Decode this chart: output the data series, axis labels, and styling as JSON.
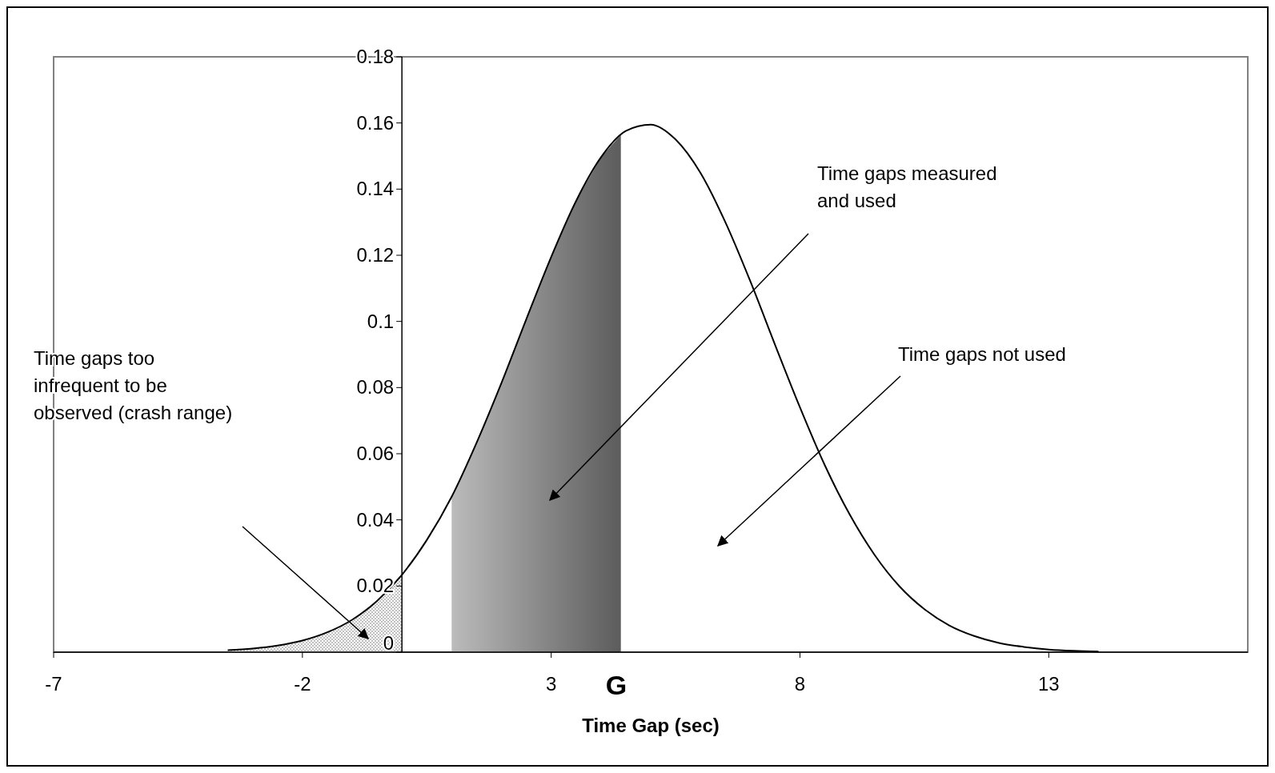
{
  "chart_data": {
    "type": "line",
    "xlabel": "Time Gap (sec)",
    "xlim": [
      -7,
      17
    ],
    "xticks": [
      -7,
      -2,
      3,
      8,
      13
    ],
    "ylim": [
      0,
      0.18
    ],
    "yticks": [
      0,
      0.02,
      0.04,
      0.06,
      0.08,
      0.1,
      0.12,
      0.14,
      0.16,
      0.18
    ],
    "grid": false,
    "series": [
      {
        "type": "area",
        "color": "#c0c0c0",
        "x": [
          -3.5,
          -3,
          -2.5,
          -2,
          -1.5,
          -1,
          -0.5,
          0
        ],
        "values": [
          0.0006,
          0.0011,
          0.002,
          0.0035,
          0.006,
          0.0098,
          0.0155,
          0.0234
        ]
      },
      {
        "type": "area",
        "color": "#888888",
        "x": [
          1,
          1.5,
          2,
          2.5,
          3,
          3.5,
          4,
          4.4
        ],
        "values": [
          0.047,
          0.0633,
          0.0814,
          0.1007,
          0.1195,
          0.1364,
          0.1496,
          0.1564
        ]
      },
      {
        "color": "#000000",
        "x": [
          -3.5,
          -3,
          -2.5,
          -2,
          -1.5,
          -1,
          -0.5,
          0,
          0.5,
          1,
          1.5,
          2,
          2.5,
          3,
          3.5,
          4,
          4.5,
          5,
          5.5,
          6,
          6.5,
          7,
          7.5,
          8,
          8.5,
          9,
          9.5,
          10,
          10.5,
          11,
          11.5,
          12,
          12.5,
          13,
          13.5,
          14
        ],
        "values": [
          0.0006,
          0.0011,
          0.002,
          0.0035,
          0.006,
          0.0098,
          0.0155,
          0.0234,
          0.0339,
          0.047,
          0.0633,
          0.0814,
          0.1007,
          0.1195,
          0.1364,
          0.1496,
          0.1576,
          0.1595,
          0.155,
          0.1449,
          0.13,
          0.1122,
          0.0929,
          0.074,
          0.0565,
          0.0416,
          0.0294,
          0.0199,
          0.013,
          0.0081,
          0.0049,
          0.0028,
          0.0016,
          0.0008,
          0.0004,
          0.0002
        ]
      }
    ],
    "annotations": [
      "Time gaps too infrequent to be observed (crash range)",
      "Time gaps measured and used",
      "Time gaps not used",
      "G"
    ]
  }
}
